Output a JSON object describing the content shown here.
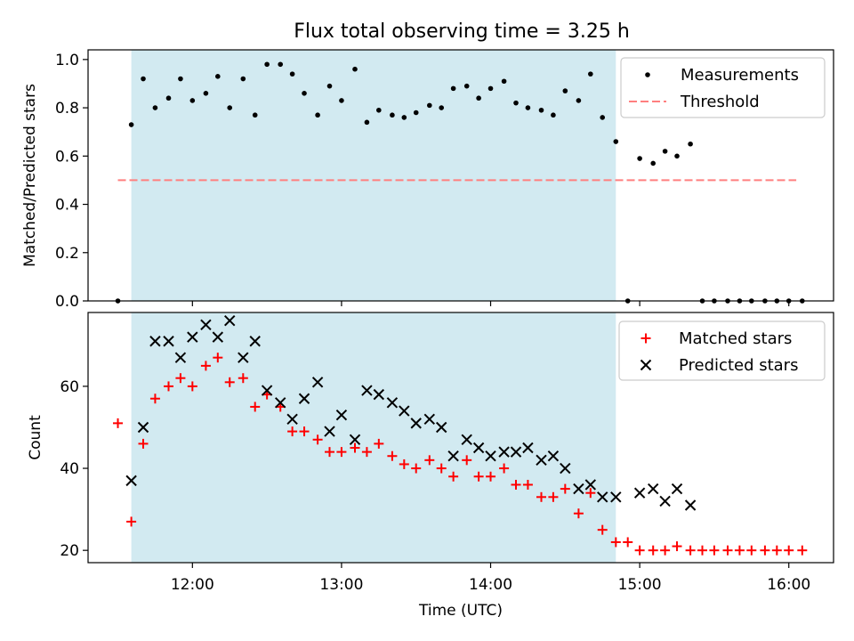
{
  "chart_data": {
    "title": "Flux total observing time = 3.25 h",
    "type": "scatter",
    "colors": {
      "measurement": "#000000",
      "threshold": "#ff7f7f",
      "matched": "#ff0000",
      "predicted": "#000000",
      "observing_window": "#add8e6"
    },
    "x_axis": {
      "label": "Time (UTC)",
      "range_hours": [
        11.3,
        16.3
      ],
      "ticks": [
        {
          "value": 12,
          "label": "12:00"
        },
        {
          "value": 13,
          "label": "13:00"
        },
        {
          "value": 14,
          "label": "14:00"
        },
        {
          "value": 15,
          "label": "15:00"
        },
        {
          "value": 16,
          "label": "16:00"
        }
      ]
    },
    "observing_window_hours": [
      11.59,
      14.84
    ],
    "top_panel": {
      "ylabel": "Matched/Predicted stars",
      "ylim": [
        0.0,
        1.04
      ],
      "yticks": [
        {
          "value": 0.0,
          "label": "0.0"
        },
        {
          "value": 0.2,
          "label": "0.2"
        },
        {
          "value": 0.4,
          "label": "0.4"
        },
        {
          "value": 0.6,
          "label": "0.6"
        },
        {
          "value": 0.8,
          "label": "0.8"
        },
        {
          "value": 1.0,
          "label": "1.0"
        }
      ],
      "legend": [
        {
          "kind": "dot",
          "label": "Measurements"
        },
        {
          "kind": "dash",
          "label": "Threshold"
        }
      ],
      "threshold": {
        "value": 0.5,
        "x_range": [
          11.5,
          16.05
        ]
      },
      "measurements": [
        [
          11.5,
          0.0
        ],
        [
          11.59,
          0.73
        ],
        [
          11.67,
          0.92
        ],
        [
          11.75,
          0.8
        ],
        [
          11.84,
          0.84
        ],
        [
          11.92,
          0.92
        ],
        [
          12.0,
          0.83
        ],
        [
          12.09,
          0.86
        ],
        [
          12.17,
          0.93
        ],
        [
          12.25,
          0.8
        ],
        [
          12.34,
          0.92
        ],
        [
          12.42,
          0.77
        ],
        [
          12.5,
          0.98
        ],
        [
          12.59,
          0.98
        ],
        [
          12.67,
          0.94
        ],
        [
          12.75,
          0.86
        ],
        [
          12.84,
          0.77
        ],
        [
          12.92,
          0.89
        ],
        [
          13.0,
          0.83
        ],
        [
          13.09,
          0.96
        ],
        [
          13.17,
          0.74
        ],
        [
          13.25,
          0.79
        ],
        [
          13.34,
          0.77
        ],
        [
          13.42,
          0.76
        ],
        [
          13.5,
          0.78
        ],
        [
          13.59,
          0.81
        ],
        [
          13.67,
          0.8
        ],
        [
          13.75,
          0.88
        ],
        [
          13.84,
          0.89
        ],
        [
          13.92,
          0.84
        ],
        [
          14.0,
          0.88
        ],
        [
          14.09,
          0.91
        ],
        [
          14.17,
          0.82
        ],
        [
          14.25,
          0.8
        ],
        [
          14.34,
          0.79
        ],
        [
          14.42,
          0.77
        ],
        [
          14.5,
          0.87
        ],
        [
          14.59,
          0.83
        ],
        [
          14.67,
          0.94
        ],
        [
          14.75,
          0.76
        ],
        [
          14.84,
          0.66
        ],
        [
          14.92,
          0.0
        ],
        [
          15.0,
          0.59
        ],
        [
          15.09,
          0.57
        ],
        [
          15.17,
          0.62
        ],
        [
          15.25,
          0.6
        ],
        [
          15.34,
          0.65
        ],
        [
          15.42,
          0.0
        ],
        [
          15.5,
          0.0
        ],
        [
          15.59,
          0.0
        ],
        [
          15.67,
          0.0
        ],
        [
          15.75,
          0.0
        ],
        [
          15.84,
          0.0
        ],
        [
          15.92,
          0.0
        ],
        [
          16.0,
          0.0
        ],
        [
          16.09,
          0.0
        ]
      ]
    },
    "bottom_panel": {
      "ylabel": "Count",
      "ylim": [
        17,
        78
      ],
      "yticks": [
        {
          "value": 20,
          "label": "20"
        },
        {
          "value": 40,
          "label": "40"
        },
        {
          "value": 60,
          "label": "60"
        }
      ],
      "legend": [
        {
          "kind": "plus",
          "label": "Matched stars"
        },
        {
          "kind": "cross",
          "label": "Predicted stars"
        }
      ],
      "matched": [
        [
          11.5,
          51
        ],
        [
          11.59,
          27
        ],
        [
          11.67,
          46
        ],
        [
          11.75,
          57
        ],
        [
          11.84,
          60
        ],
        [
          11.92,
          62
        ],
        [
          12.0,
          60
        ],
        [
          12.09,
          65
        ],
        [
          12.17,
          67
        ],
        [
          12.25,
          61
        ],
        [
          12.34,
          62
        ],
        [
          12.42,
          55
        ],
        [
          12.5,
          58
        ],
        [
          12.59,
          55
        ],
        [
          12.67,
          49
        ],
        [
          12.75,
          49
        ],
        [
          12.84,
          47
        ],
        [
          12.92,
          44
        ],
        [
          13.0,
          44
        ],
        [
          13.09,
          45
        ],
        [
          13.17,
          44
        ],
        [
          13.25,
          46
        ],
        [
          13.34,
          43
        ],
        [
          13.42,
          41
        ],
        [
          13.5,
          40
        ],
        [
          13.59,
          42
        ],
        [
          13.67,
          40
        ],
        [
          13.75,
          38
        ],
        [
          13.84,
          42
        ],
        [
          13.92,
          38
        ],
        [
          14.0,
          38
        ],
        [
          14.09,
          40
        ],
        [
          14.17,
          36
        ],
        [
          14.25,
          36
        ],
        [
          14.34,
          33
        ],
        [
          14.42,
          33
        ],
        [
          14.5,
          35
        ],
        [
          14.59,
          29
        ],
        [
          14.67,
          34
        ],
        [
          14.75,
          25
        ],
        [
          14.84,
          22
        ],
        [
          14.92,
          22
        ],
        [
          15.0,
          20
        ],
        [
          15.09,
          20
        ],
        [
          15.17,
          20
        ],
        [
          15.25,
          21
        ],
        [
          15.34,
          20
        ],
        [
          15.42,
          20
        ],
        [
          15.5,
          20
        ],
        [
          15.59,
          20
        ],
        [
          15.67,
          20
        ],
        [
          15.75,
          20
        ],
        [
          15.84,
          20
        ],
        [
          15.92,
          20
        ],
        [
          16.0,
          20
        ],
        [
          16.09,
          20
        ]
      ],
      "predicted": [
        [
          11.59,
          37
        ],
        [
          11.67,
          50
        ],
        [
          11.75,
          71
        ],
        [
          11.84,
          71
        ],
        [
          11.92,
          67
        ],
        [
          12.0,
          72
        ],
        [
          12.09,
          75
        ],
        [
          12.17,
          72
        ],
        [
          12.25,
          76
        ],
        [
          12.34,
          67
        ],
        [
          12.42,
          71
        ],
        [
          12.5,
          59
        ],
        [
          12.59,
          56
        ],
        [
          12.67,
          52
        ],
        [
          12.75,
          57
        ],
        [
          12.84,
          61
        ],
        [
          12.92,
          49
        ],
        [
          13.0,
          53
        ],
        [
          13.09,
          47
        ],
        [
          13.17,
          59
        ],
        [
          13.25,
          58
        ],
        [
          13.34,
          56
        ],
        [
          13.42,
          54
        ],
        [
          13.5,
          51
        ],
        [
          13.59,
          52
        ],
        [
          13.67,
          50
        ],
        [
          13.75,
          43
        ],
        [
          13.84,
          47
        ],
        [
          13.92,
          45
        ],
        [
          14.0,
          43
        ],
        [
          14.09,
          44
        ],
        [
          14.17,
          44
        ],
        [
          14.25,
          45
        ],
        [
          14.34,
          42
        ],
        [
          14.42,
          43
        ],
        [
          14.5,
          40
        ],
        [
          14.59,
          35
        ],
        [
          14.67,
          36
        ],
        [
          14.75,
          33
        ],
        [
          14.84,
          33
        ],
        [
          15.0,
          34
        ],
        [
          15.09,
          35
        ],
        [
          15.17,
          32
        ],
        [
          15.25,
          35
        ],
        [
          15.34,
          31
        ]
      ]
    }
  }
}
